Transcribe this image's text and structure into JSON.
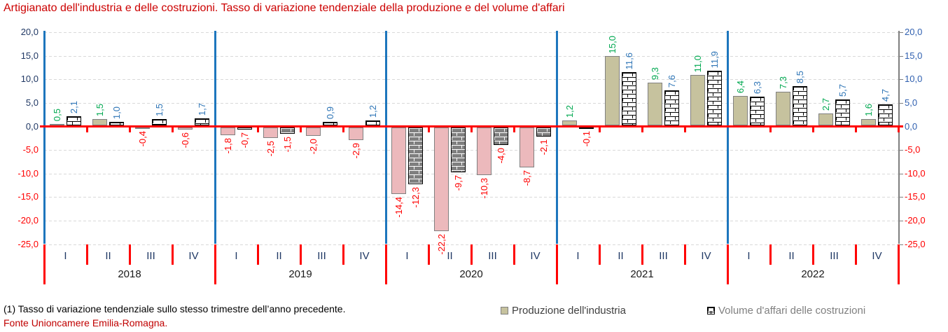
{
  "title": "Artigianato dell'industria e delle costruzioni. Tasso di variazione tendenziale della produzione e del volume d'affari",
  "chart_data": {
    "type": "bar",
    "title": "Artigianato dell'industria e delle costruzioni. Tasso di variazione tendenziale della produzione e del volume d'affari",
    "years": [
      "2018",
      "2019",
      "2020",
      "2021",
      "2022"
    ],
    "quarters_per_year": [
      "I",
      "II",
      "III",
      "IV"
    ],
    "series": [
      {
        "name": "Produzione dell'industria",
        "values": [
          0.5,
          1.5,
          -0.4,
          -0.6,
          -1.8,
          -2.5,
          -2.0,
          -2.9,
          -14.4,
          -22.2,
          -10.3,
          -8.7,
          1.2,
          15.0,
          9.3,
          11.0,
          6.4,
          7.3,
          2.7,
          1.6
        ]
      },
      {
        "name": "Volume d'affari delle costruzioni",
        "values": [
          2.1,
          1.0,
          1.5,
          1.7,
          -0.7,
          -1.5,
          0.9,
          1.2,
          -12.3,
          -9.7,
          -4.0,
          -2.1,
          -0.1,
          11.6,
          7.6,
          11.9,
          6.3,
          8.5,
          5.7,
          4.7
        ]
      }
    ],
    "ylim": [
      -25,
      20
    ],
    "ytick_step": 5,
    "y_ticks": [
      "20,0",
      "15,0",
      "10,0",
      "5,0",
      "0,0",
      "-5,0",
      "-10,0",
      "-15,0",
      "-20,0",
      "-25,0"
    ],
    "grid": "dashed horizontal every 5",
    "legend_position": "bottom-right",
    "decimal_separator": ","
  },
  "legend": {
    "industry_label": "Produzione dell'industria",
    "construction_label": "Volume d'affari delle costruzioni"
  },
  "footnotes": [
    "(1) Tasso di variazione tendenziale sullo stesso trimestre dell’anno precedente.",
    "Fonte Unioncamere Emilia-Romagna."
  ],
  "colors": {
    "title_red": "#CC0000",
    "industry_positive": "#C6C29E",
    "industry_negative": "#ECB9BC",
    "industry_border": "#808080",
    "construction_line": "#000000",
    "construction_negative_fill": "#7F7F7F",
    "zero_line_red": "#FF0000",
    "year_separator_blue": "#1D76BD",
    "gridline": "#D9D9D9",
    "right_axis_gray": "#7F7F7F",
    "axis_positive_left": "#203864",
    "axis_positive_right": "#3060B0",
    "axis_negative": "#FF0000",
    "value_label_industry_positive": "#00A850",
    "value_label_construction_positive": "#2E75B6",
    "value_label_negative": "#FF0000",
    "quarter_label": "#1F3864",
    "year_label": "#1A1A1A",
    "legend_industry_text": "#404040",
    "legend_construction_text": "#808080",
    "source_red": "#C00000"
  }
}
